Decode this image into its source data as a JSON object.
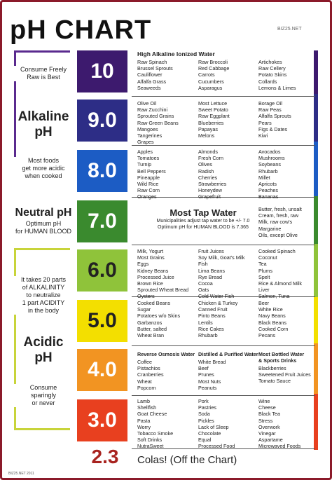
{
  "title": "pH CHART",
  "site": "BIZ25.NET",
  "footer": "BIZ25.NET 2011",
  "side": {
    "consume_freely": "Consume Freely",
    "raw_best": "Raw is Best",
    "alkaline": "Alkaline",
    "ph1": "pH",
    "most_foods": "Most  foods",
    "get_more": "get more acidic",
    "when_cooked": "when cooked",
    "neutral": "Neutral pH",
    "optimum": "Optimum pH",
    "for_human": "for HUMAN BLOOD",
    "takes20": "It takes 20 parts",
    "of_alk": "of ALKALINITY",
    "to_neut": "to neutralize",
    "one_acid": "1 part ACIDITY",
    "in_body": "in the body",
    "acidic": "Acidic",
    "ph2": "pH",
    "consume": "Consume",
    "sparingly": "sparingly",
    "or_never": "or never"
  },
  "levels": {
    "l10": "10",
    "l9": "9.0",
    "l8": "8.0",
    "l7": "7.0",
    "l6": "6.0",
    "l5": "5.0",
    "l4": "4.0",
    "l3": "3.0",
    "l23": "2.3"
  },
  "row10": {
    "title": "High Alkaline Ionized Water",
    "c1": [
      "Raw Spinach",
      "Brussel Sprouts",
      "Cauliflower",
      "Alfalfa Grass",
      "Seaweeds"
    ],
    "c2": [
      "Raw Broccoli",
      "Red Cabbage",
      "Carrots",
      "Cucumbers",
      "Asparagus"
    ],
    "c3": [
      "Artichokes",
      "Raw Cellery",
      "Potato Skins",
      "Collards",
      "Lemons & Limes"
    ]
  },
  "row9": {
    "c1": [
      "Olive Oil",
      "Raw Zucchini",
      "Sprouted Grains",
      "Raw Green Beans",
      "Mangoes",
      "Tangerines",
      "Grapes"
    ],
    "c2": [
      "Most Lettuce",
      "Sweet Potato",
      "Raw Eggplant",
      "Blueberries",
      "Papayas",
      "Melons"
    ],
    "c3": [
      "Borage Oil",
      "Raw Peas",
      "Alfalfa Sprouts",
      "Pears",
      "Figs & Dates",
      "Kiwi"
    ]
  },
  "row8": {
    "c1": [
      "Apples",
      "Tomatoes",
      "Turnip",
      "Bell Peppers",
      "Pineapple",
      "Wild Rice",
      "Raw Corn",
      "Oranges"
    ],
    "c2": [
      "Almonds",
      "Fresh Corn",
      "Olives",
      "Radish",
      "Cherries",
      "Strawberries",
      "Honeydew",
      "Grapefruit"
    ],
    "c3": [
      "Avocados",
      "Mushrooms",
      "Soybeans",
      "Rhubarb",
      "Millet",
      "Apricots",
      "Peaches",
      "Bananas"
    ]
  },
  "row7": {
    "title": "Most Tap Water",
    "note1": "Municipalities adjust tap water to be +/- 7.0",
    "note2": "Optimum pH for HUMAN BLOOD is 7.365",
    "c3": [
      "Butter, fresh, unsalt",
      "Cream, fresh, raw",
      "Milk, raw cow's",
      "Margarine",
      "Oils, except Olive"
    ]
  },
  "row6": {
    "c1": [
      "Milk, Yogurt",
      "Most Grains",
      "Eggs",
      "Kidney Beans",
      "Processed Juice",
      "Brown Rice",
      "Sprouted Wheat Bread",
      "Oysters"
    ],
    "c2": [
      "Fruit Juices",
      "Soy Milk, Goat's Milk",
      "Fish",
      "Lima Beans",
      "Rye Bread",
      "Cocoa",
      "Oats",
      "Cold Water Fish"
    ],
    "c3": [
      "Cooked Spinach",
      "Coconut",
      "Tea",
      "Plums",
      "Spelt",
      "Rice & Almond Milk",
      "Liver",
      "Salmon, Tuna"
    ]
  },
  "row5": {
    "c1": [
      "Cooked Beans",
      "Sugar",
      "Potatoes w/o Skins",
      "Garbanzos",
      "Butter, salted",
      "Wheat Bran"
    ],
    "c2": [
      "Chicken & Turkey",
      "Canned Fruit",
      "Pinto Beans",
      "Lentils",
      "Rice Cakes",
      "Rhubarb"
    ],
    "c3": [
      "Beer",
      "White Rice",
      "Navy Beans",
      "Black Beans",
      "Cooked Corn",
      "Pecans"
    ]
  },
  "row4": {
    "t1": "Reverse Osmosis Water",
    "t2": "Distilled & Purified Water",
    "t3a": "Most Bottled Water",
    "t3b": "& Sports Drinks",
    "c1": [
      "Coffee",
      "Pistachios",
      "Cranberries",
      "Wheat",
      "Popcorn"
    ],
    "c2": [
      "White Bread",
      "Beef",
      "Prunes",
      "Most Nuts",
      "Peanuts"
    ],
    "c3": [
      "Blackberries",
      "Sweetened Fruit Juices",
      "Tomato Sauce"
    ]
  },
  "row3": {
    "c1": [
      "Lamb",
      "Shellfish",
      "Goat Cheese",
      "Pasta",
      "Worry",
      "Tobacco Smoke",
      "Soft Drinks",
      "NutraSweet"
    ],
    "c2": [
      "Pork",
      "Pastries",
      "Soda",
      "Pickles",
      "Lack of Sleep",
      "Chocolate",
      "Equal",
      "Processed Food"
    ],
    "c3": [
      "Wine",
      "Cheese",
      "Black Tea",
      "Stress",
      "Overwork",
      "Vinegar",
      "Aspartame",
      "Microwaved Foods"
    ]
  },
  "cola": "Colas! (Off the Chart)",
  "colors": {
    "c10": "#3d1a6e",
    "c9": "#2d2d86",
    "c8": "#1c5cc4",
    "c7": "#3a8a2e",
    "c6": "#8fc33a",
    "c5": "#f3df00",
    "c4": "#f29422",
    "c3": "#e8401f",
    "frame": "#8b1a2a"
  }
}
